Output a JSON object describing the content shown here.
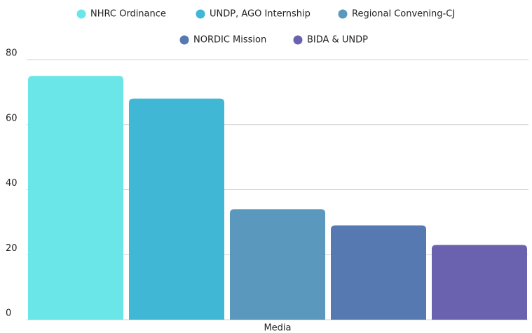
{
  "chart_data": {
    "type": "bar",
    "categories": [
      "Media"
    ],
    "series": [
      {
        "name": "NHRC Ordinance",
        "color": "#6be6e8",
        "values": [
          75
        ]
      },
      {
        "name": "UNDP, AGO Internship",
        "color": "#41b7d6",
        "values": [
          68
        ]
      },
      {
        "name": "Regional Convening-CJ",
        "color": "#5b98bd",
        "values": [
          34
        ]
      },
      {
        "name": "NORDIC Mission",
        "color": "#5779b1",
        "values": [
          29
        ]
      },
      {
        "name": "BIDA & UNDP",
        "color": "#6a62ae",
        "values": [
          23
        ]
      }
    ],
    "ylim": [
      0,
      80
    ],
    "yticks": [
      0,
      20,
      40,
      60,
      80
    ],
    "grid": true,
    "legend": "top"
  }
}
